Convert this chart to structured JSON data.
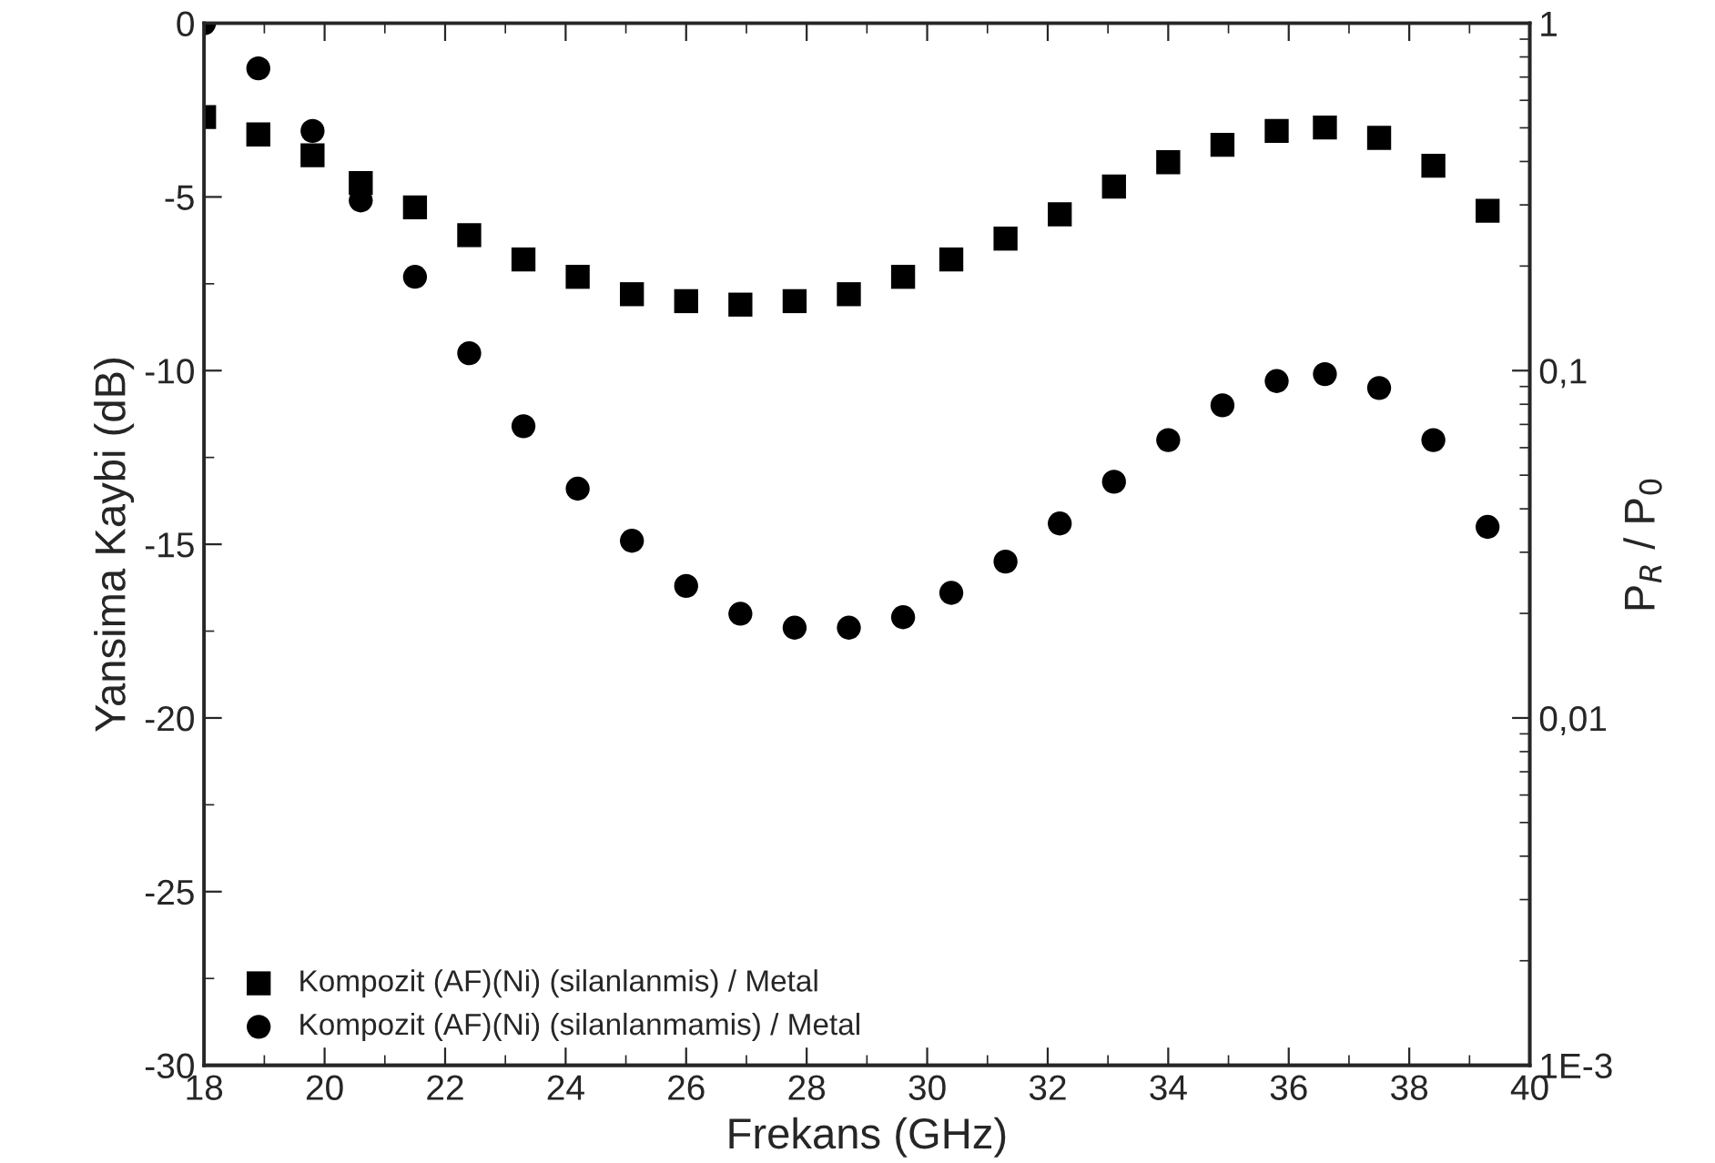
{
  "chart_data": {
    "type": "scatter",
    "xlabel": "Frekans (GHz)",
    "ylabel": "Yansima Kaybi (dB)",
    "y2label": "P$_{R}$ / P$_{0}$",
    "x": [
      18,
      18.9,
      19.8,
      20.6,
      21.5,
      22.4,
      23.3,
      24.2,
      25.1,
      26.0,
      26.9,
      27.8,
      28.7,
      29.6,
      30.4,
      31.3,
      32.2,
      33.1,
      34.0,
      34.9,
      35.8,
      36.6,
      37.5,
      38.4,
      39.3
    ],
    "series": [
      {
        "name": "Kompozit (AF)(Ni) (silanlanmis) / Metal",
        "color": "#000000",
        "marker": "square",
        "values": [
          -2.7,
          -3.2,
          -3.8,
          -4.6,
          -5.3,
          -6.1,
          -6.8,
          -7.3,
          -7.8,
          -8.0,
          -8.1,
          -8.0,
          -7.8,
          -7.3,
          -6.8,
          -6.2,
          -5.5,
          -4.7,
          -4.0,
          -3.5,
          -3.1,
          -3.0,
          -3.3,
          -4.1,
          -5.4
        ]
      },
      {
        "name": "Kompozit (AF)(Ni) (silanlanmamis) / Metal",
        "color": "#000000",
        "marker": "circle",
        "values": [
          0,
          -1.3,
          -3.1,
          -5.1,
          -7.3,
          -9.5,
          -11.6,
          -13.4,
          -14.9,
          -16.2,
          -17.0,
          -17.4,
          -17.4,
          -17.1,
          -16.4,
          -15.5,
          -14.4,
          -13.2,
          -12.0,
          -11.0,
          -10.3,
          -10.1,
          -10.5,
          -12.0,
          -14.5
        ]
      }
    ],
    "xlim": [
      18,
      40
    ],
    "xticks": [
      18,
      20,
      22,
      24,
      26,
      28,
      30,
      32,
      34,
      36,
      38,
      40
    ],
    "ylim": [
      -30,
      0
    ],
    "yticks": [
      -30,
      -25,
      -20,
      -15,
      -10,
      -5,
      0
    ],
    "y2lim": [
      0.001,
      1
    ],
    "y2ticks": [
      {
        "value": 0.001,
        "label": "1E-3"
      },
      {
        "value": 0.01,
        "label": "0,01"
      },
      {
        "value": 0.1,
        "label": "0,1"
      },
      1
    ],
    "log": "y2",
    "grid": false,
    "legend": "bottom left"
  }
}
